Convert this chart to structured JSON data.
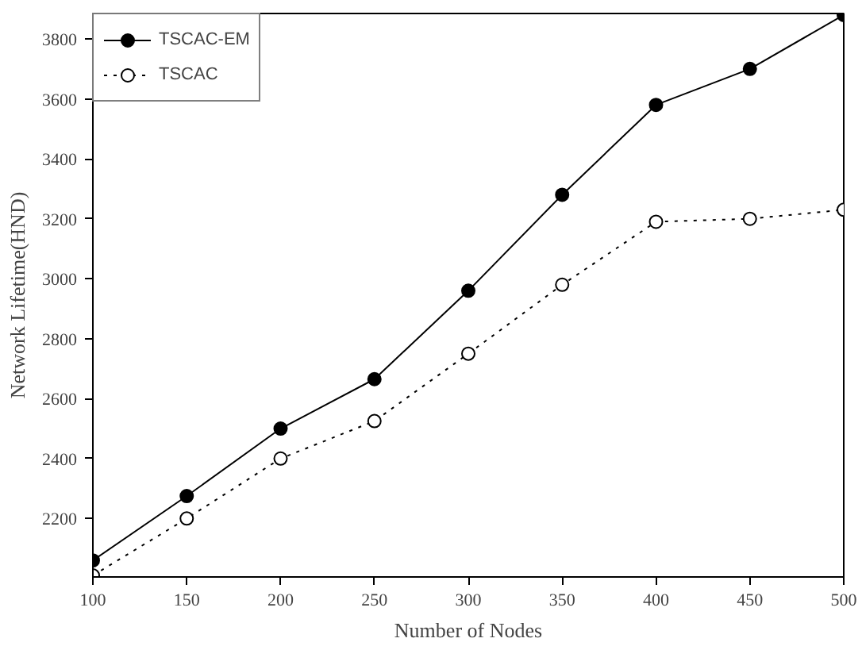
{
  "chart_data": {
    "type": "line",
    "xlabel": "Number of Nodes",
    "ylabel": "Network Lifetime(HND)",
    "x": [
      100,
      150,
      200,
      250,
      300,
      350,
      400,
      450,
      500
    ],
    "series": [
      {
        "name": "TSCAC-EM",
        "color": "#000000",
        "values": [
          2060,
          2275,
          2500,
          2665,
          2960,
          3280,
          3580,
          3700,
          3880
        ],
        "marker": "circle",
        "line_style": "solid"
      },
      {
        "name": "TSCAC",
        "color": "#000000",
        "values": [
          2010,
          2200,
          2400,
          2525,
          2750,
          2980,
          3190,
          3200,
          3230
        ],
        "marker": "circle",
        "line_style": "dotted"
      }
    ],
    "xlim": [
      100,
      500
    ],
    "ylim": [
      2005,
      3885
    ],
    "xticks": [
      100,
      150,
      200,
      250,
      300,
      350,
      400,
      450,
      500
    ],
    "yticks": [
      2200,
      2400,
      2600,
      2800,
      3000,
      3200,
      3400,
      3600,
      3800
    ],
    "grid": false,
    "legend": "top left"
  }
}
